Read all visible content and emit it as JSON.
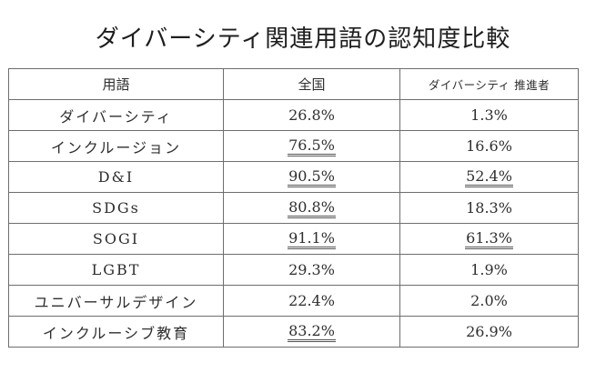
{
  "title": "ダイバーシティ関連用語の認知度比較",
  "table": {
    "headers": {
      "term": "用語",
      "national": "全国",
      "promoter": "ダイバーシティ 推進者"
    },
    "rows": [
      {
        "term": "ダイバーシティ",
        "national": "26.8%",
        "national_highlight": false,
        "promoter": "1.3%",
        "promoter_highlight": false
      },
      {
        "term": "インクルージョン",
        "national": "76.5%",
        "national_highlight": true,
        "promoter": "16.6%",
        "promoter_highlight": false
      },
      {
        "term": "D&I",
        "national": "90.5%",
        "national_highlight": true,
        "promoter": "52.4%",
        "promoter_highlight": true
      },
      {
        "term": "SDGs",
        "national": "80.8%",
        "national_highlight": true,
        "promoter": "18.3%",
        "promoter_highlight": false
      },
      {
        "term": "SOGI",
        "national": "91.1%",
        "national_highlight": true,
        "promoter": "61.3%",
        "promoter_highlight": true
      },
      {
        "term": "LGBT",
        "national": "29.3%",
        "national_highlight": false,
        "promoter": "1.9%",
        "promoter_highlight": false
      },
      {
        "term": "ユニバーサルデザイン",
        "national": "22.4%",
        "national_highlight": false,
        "promoter": "2.0%",
        "promoter_highlight": false
      },
      {
        "term": "インクルーシブ教育",
        "national": "83.2%",
        "national_highlight": true,
        "promoter": "26.9%",
        "promoter_highlight": false
      }
    ]
  },
  "colors": {
    "border": "#6e6e6e",
    "text": "#2e2e2e",
    "underline": "#555555"
  }
}
